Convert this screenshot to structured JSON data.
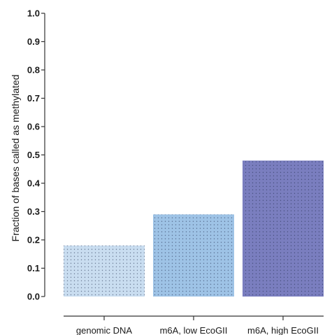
{
  "chart_data": {
    "type": "bar",
    "categories": [
      "genomic DNA",
      "m6A, low EcoGII",
      "m6A, high EcoGII"
    ],
    "values": [
      0.18,
      0.29,
      0.48
    ],
    "colors": [
      "#c9ddf0",
      "#9ec3e6",
      "#7a7ebf"
    ],
    "pattern": "dotted",
    "ylabel": "Fraction of bases called as methylated",
    "xlabel": "",
    "ylim": [
      0,
      1.0
    ],
    "yticks": [
      "0.0",
      "0.1",
      "0.2",
      "0.3",
      "0.4",
      "0.5",
      "0.6",
      "0.7",
      "0.8",
      "0.9",
      "1.0"
    ],
    "grid": false,
    "legend": "none"
  }
}
